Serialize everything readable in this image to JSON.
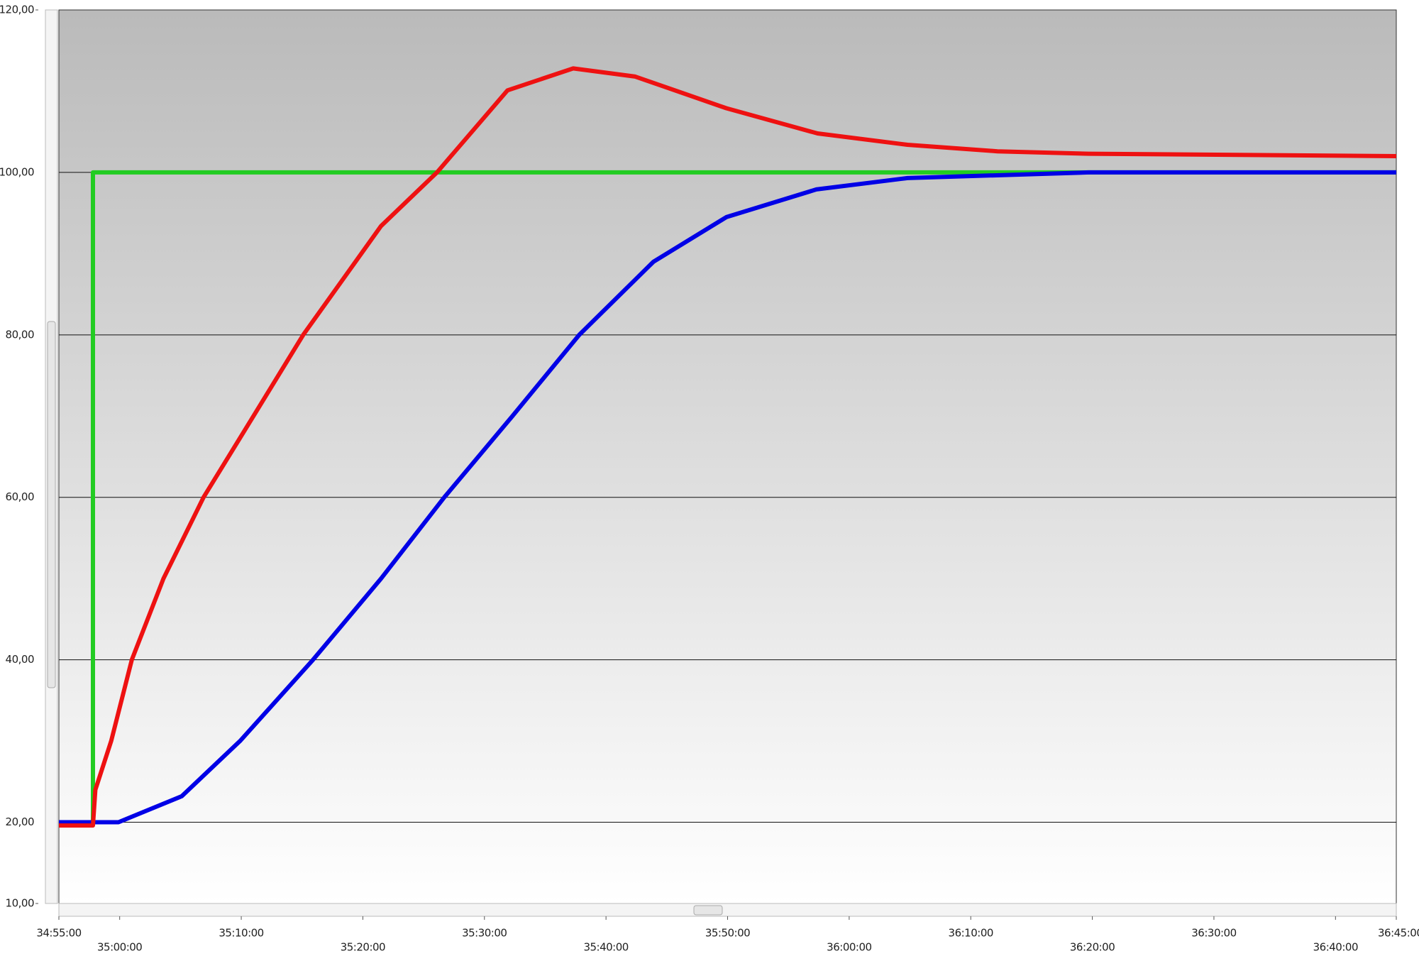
{
  "chart_data": {
    "type": "line",
    "xlim": [
      2095,
      2205
    ],
    "xticks": [
      {
        "value": 2095,
        "label": "34:55:00"
      },
      {
        "value": 2100,
        "label": "35:00:00"
      },
      {
        "value": 2110,
        "label": "35:10:00"
      },
      {
        "value": 2120,
        "label": "35:20:00"
      },
      {
        "value": 2130,
        "label": "35:30:00"
      },
      {
        "value": 2140,
        "label": "35:40:00"
      },
      {
        "value": 2150,
        "label": "35:50:00"
      },
      {
        "value": 2160,
        "label": "36:00:00"
      },
      {
        "value": 2170,
        "label": "36:10:00"
      },
      {
        "value": 2180,
        "label": "36:20:00"
      },
      {
        "value": 2190,
        "label": "36:30:00"
      },
      {
        "value": 2200,
        "label": "36:40:00"
      },
      {
        "value": 2205,
        "label": "36:45:00"
      }
    ],
    "ylim": [
      10,
      120
    ],
    "yticks": [
      {
        "value": 10,
        "label": "10,00"
      },
      {
        "value": 20,
        "label": "20,00"
      },
      {
        "value": 40,
        "label": "40,00"
      },
      {
        "value": 60,
        "label": "60,00"
      },
      {
        "value": 80,
        "label": "80,00"
      },
      {
        "value": 100,
        "label": "100,00"
      },
      {
        "value": 120,
        "label": "120,00"
      }
    ],
    "grid": true,
    "series": [
      {
        "color": "#22cc22",
        "x": [
          2095,
          2097.8,
          2097.8,
          2205
        ],
        "values": [
          20,
          20,
          100,
          100
        ]
      },
      {
        "color": "#0000e6",
        "x": [
          2095,
          2099.9,
          2105.1,
          2109.9,
          2115.9,
          2121.5,
          2126.7,
          2132.3,
          2137.8,
          2143.9,
          2149.9,
          2157.3,
          2164.8,
          2179.7,
          2205
        ],
        "values": [
          20,
          20,
          23.2,
          30,
          40,
          50,
          60,
          70,
          80,
          89,
          94.5,
          97.9,
          99.3,
          100,
          100
        ]
      },
      {
        "color": "#ee1111",
        "x": [
          2095,
          2097.8,
          2098.0,
          2099.3,
          2101.0,
          2103.6,
          2106.9,
          2111.0,
          2115.1,
          2121.5,
          2126.1,
          2131.9,
          2137.3,
          2142.4,
          2149.9,
          2157.4,
          2164.8,
          2172.2,
          2179.7,
          2205
        ],
        "values": [
          19.6,
          19.6,
          24,
          30,
          40,
          50,
          60,
          70,
          80,
          93.4,
          100,
          110.1,
          112.8,
          111.8,
          107.9,
          104.8,
          103.4,
          102.6,
          102.3,
          102.0
        ]
      }
    ]
  }
}
